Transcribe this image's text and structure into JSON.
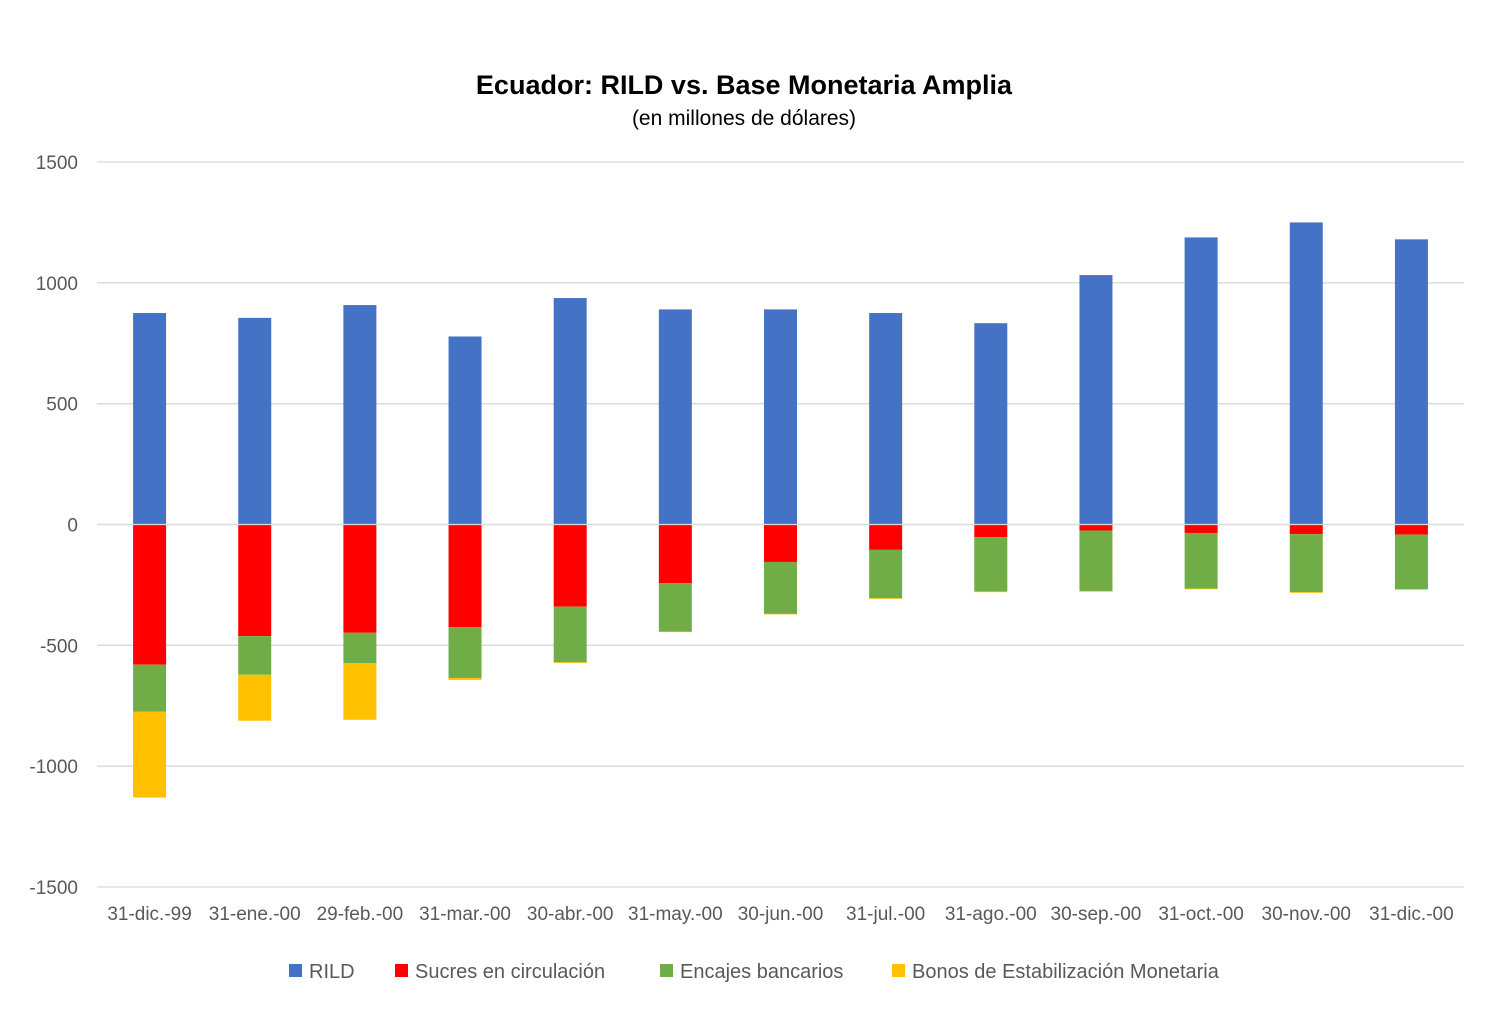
{
  "chart_data": {
    "type": "bar",
    "stacked": true,
    "title": "Ecuador: RILD vs. Base Monetaria Amplia",
    "subtitle": "(en millones de dólares)",
    "xlabel": "",
    "ylabel": "",
    "ylim": [
      -1500,
      1500
    ],
    "yticks": [
      1500,
      1000,
      500,
      0,
      -500,
      -1000,
      -1500
    ],
    "grid": true,
    "legend_position": "bottom",
    "categories": [
      "31-dic.-99",
      "31-ene.-00",
      "29-feb.-00",
      "31-mar.-00",
      "30-abr.-00",
      "31-may.-00",
      "30-jun.-00",
      "31-jul.-00",
      "31-ago.-00",
      "30-sep.-00",
      "31-oct.-00",
      "30-nov.-00",
      "31-dic.-00"
    ],
    "series": [
      {
        "name": "RILD",
        "color": "#4472C4",
        "values": [
          875,
          855,
          908,
          778,
          937,
          890,
          890,
          875,
          833,
          1032,
          1188,
          1250,
          1180
        ]
      },
      {
        "name": "Sucres en circulación",
        "color": "#FF0000",
        "values": [
          -580,
          -462,
          -448,
          -425,
          -340,
          -243,
          -155,
          -105,
          -52,
          -25,
          -35,
          -40,
          -42
        ]
      },
      {
        "name": "Encajes bancarios",
        "color": "#70AD47",
        "values": [
          -195,
          -160,
          -125,
          -210,
          -230,
          -200,
          -215,
          -200,
          -225,
          -250,
          -230,
          -240,
          -225
        ]
      },
      {
        "name": "Bonos de Estabilización Monetaria",
        "color": "#FFC000",
        "values": [
          -355,
          -190,
          -235,
          -8,
          -3,
          -2,
          -2,
          -3,
          -3,
          -3,
          -3,
          -3,
          -3
        ]
      }
    ]
  }
}
